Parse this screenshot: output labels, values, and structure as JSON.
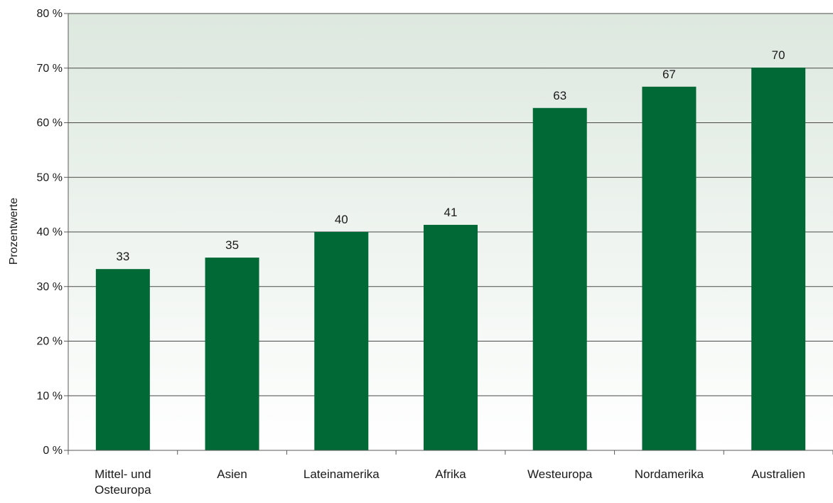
{
  "chart_data": {
    "type": "bar",
    "title": "",
    "xlabel": "",
    "ylabel": "Prozentwerte",
    "categories": [
      [
        "Mittel- und",
        "Osteuropa"
      ],
      [
        "Asien"
      ],
      [
        "Lateinamerika"
      ],
      [
        "Afrika"
      ],
      [
        "Westeuropa"
      ],
      [
        "Nordamerika"
      ],
      [
        "Australien"
      ]
    ],
    "values": [
      33,
      35,
      40,
      41,
      63,
      67,
      70
    ],
    "value_levels": [
      33.2,
      35.3,
      40.0,
      41.3,
      62.7,
      66.6,
      70.1
    ],
    "ylim": [
      0,
      80
    ],
    "yticks": [
      "0 %",
      "10 %",
      "20 %",
      "30 %",
      "40 %",
      "50 %",
      "60 %",
      "70 %",
      "80 %"
    ],
    "grid": true,
    "legend": "none"
  },
  "colors": {
    "bar": "#016935",
    "gradient_top": "#dde8df",
    "gradient_bottom": "#ffffff",
    "gridline": "#4a4a4a",
    "axis": "#5a5a5a",
    "text": "#1a1a1a"
  }
}
